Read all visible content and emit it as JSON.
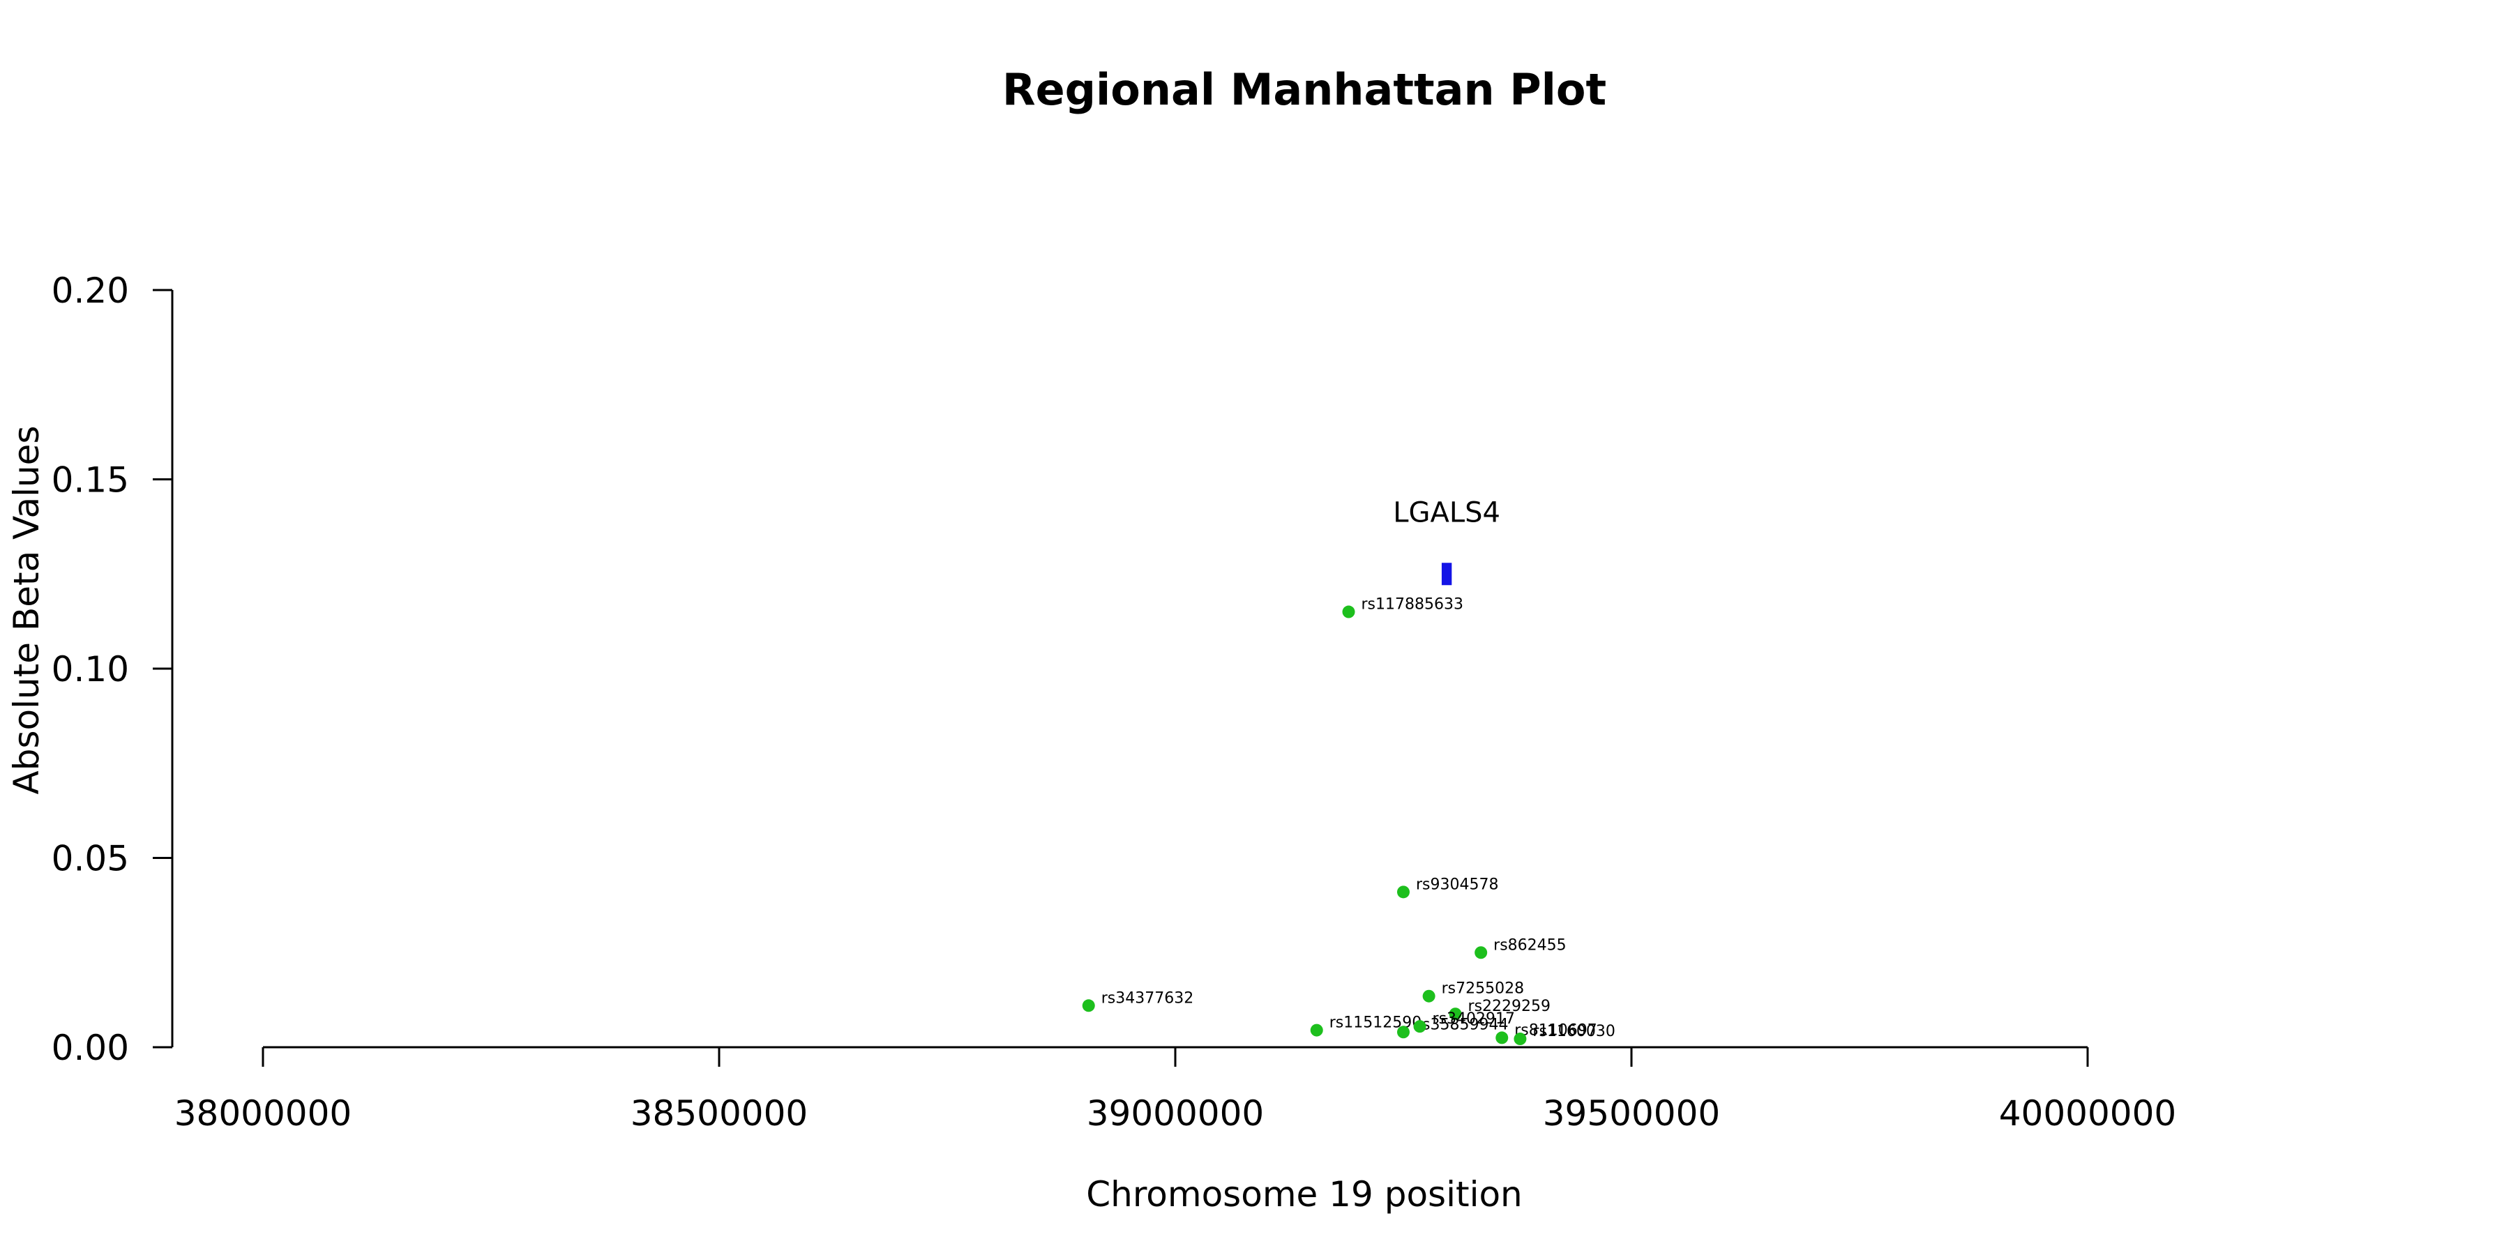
{
  "chart_data": {
    "type": "scatter",
    "title": "Regional Manhattan Plot",
    "xlabel": "Chromosome 19 position",
    "ylabel": "Absolute Beta Values",
    "xlim": [
      38000000,
      40000000
    ],
    "ylim": [
      0,
      0.2
    ],
    "x_ticks": [
      38000000,
      38500000,
      39000000,
      39500000,
      40000000
    ],
    "x_tick_labels": [
      "38000000",
      "38500000",
      "39000000",
      "39500000",
      "40000000"
    ],
    "y_ticks": [
      0,
      0.05,
      0.1,
      0.15,
      0.2
    ],
    "y_tick_labels": [
      "0.00",
      "0.05",
      "0.10",
      "0.15",
      "0.20"
    ],
    "grid": false,
    "point_color": "#1DBF1D",
    "points": [
      {
        "label": "rs117885633",
        "x": 39190000,
        "y": 0.115
      },
      {
        "label": "rs9304578",
        "x": 39250000,
        "y": 0.041
      },
      {
        "label": "rs862455",
        "x": 39335000,
        "y": 0.025
      },
      {
        "label": "rs34377632",
        "x": 38905000,
        "y": 0.011
      },
      {
        "label": "rs7255028",
        "x": 39278000,
        "y": 0.0135
      },
      {
        "label": "rs2229259",
        "x": 39307000,
        "y": 0.0088
      },
      {
        "label": "rs11512590",
        "x": 39155000,
        "y": 0.0045
      },
      {
        "label": "rs35859944",
        "x": 39250000,
        "y": 0.004
      },
      {
        "label": "rs3402917",
        "x": 39268000,
        "y": 0.0055
      },
      {
        "label": "rs8110697",
        "x": 39358000,
        "y": 0.0025
      },
      {
        "label": "rs1160030",
        "x": 39378000,
        "y": 0.0022
      }
    ],
    "gene": {
      "name": "LGALS4",
      "start": 39292000,
      "end": 39303000,
      "y": 0.125,
      "color": "#1414E6"
    }
  }
}
